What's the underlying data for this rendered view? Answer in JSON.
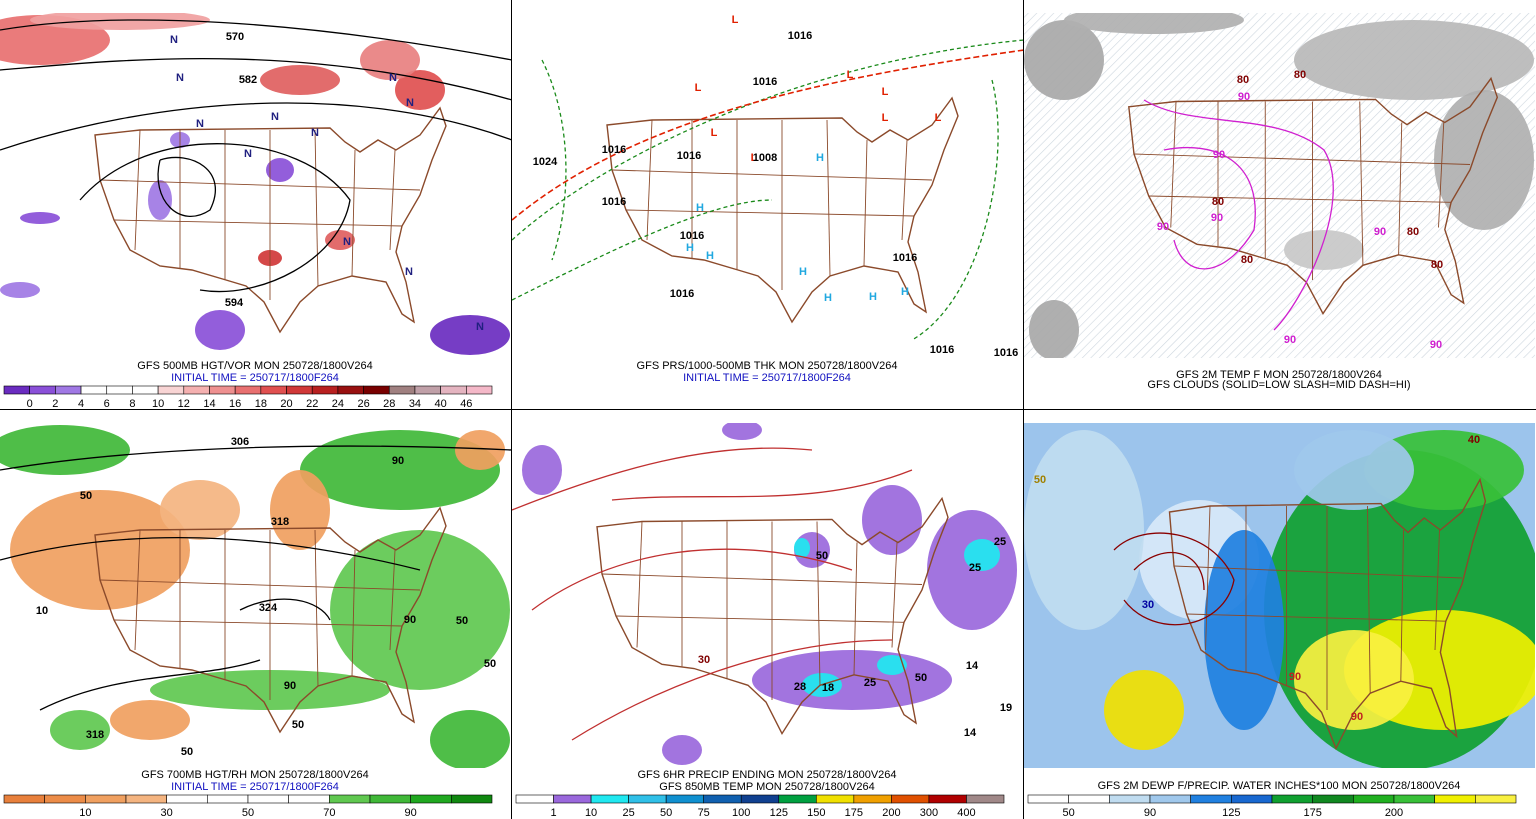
{
  "panels": [
    {
      "captions": [
        {
          "text": "GFS 500MB HGT/VOR MON 250728/1800V264",
          "color": "#000000"
        },
        {
          "text": "INITIAL TIME = 250717/1800F264",
          "color": "#1010c0"
        }
      ],
      "map_labels": [
        {
          "text": "570",
          "color": "#000000"
        },
        {
          "text": "582",
          "color": "#000000"
        },
        {
          "text": "594",
          "color": "#000000"
        },
        {
          "text": "N",
          "color": "#202080"
        },
        {
          "text": "N",
          "color": "#202080"
        },
        {
          "text": "N",
          "color": "#202080"
        },
        {
          "text": "N",
          "color": "#202080"
        },
        {
          "text": "N",
          "color": "#202080"
        },
        {
          "text": "N",
          "color": "#202080"
        },
        {
          "text": "N",
          "color": "#202080"
        },
        {
          "text": "N",
          "color": "#202080"
        },
        {
          "text": "N",
          "color": "#202080"
        },
        {
          "text": "N",
          "color": "#202080"
        },
        {
          "text": "N",
          "color": "#202080"
        }
      ],
      "colorbar": {
        "labels": [
          "0",
          "2",
          "4",
          "6",
          "8",
          "10",
          "12",
          "14",
          "16",
          "18",
          "20",
          "22",
          "24",
          "26",
          "28",
          "34",
          "40",
          "46"
        ],
        "colors": [
          "#6a2cc0",
          "#8a50d8",
          "#a078e4",
          "#ffffff",
          "#ffffff",
          "#ffffff",
          "#f8d4d4",
          "#f4b0b0",
          "#ee9090",
          "#e87070",
          "#e05050",
          "#d03838",
          "#b82020",
          "#981010",
          "#780000",
          "#a08080",
          "#c0a0a8",
          "#e4b4c0",
          "#f4b8c8"
        ]
      }
    },
    {
      "captions": [
        {
          "text": "GFS PRS/1000-500MB THK MON 250728/1800V264",
          "color": "#000000"
        },
        {
          "text": "INITIAL TIME = 250717/1800F264",
          "color": "#1010c0"
        }
      ],
      "map_labels": [
        {
          "text": "L",
          "color": "#e02000"
        },
        {
          "text": "L",
          "color": "#e02000"
        },
        {
          "text": "L",
          "color": "#e02000"
        },
        {
          "text": "L",
          "color": "#e02000"
        },
        {
          "text": "L",
          "color": "#e02000"
        },
        {
          "text": "L",
          "color": "#e02000"
        },
        {
          "text": "L",
          "color": "#e02000"
        },
        {
          "text": "L",
          "color": "#e02000"
        },
        {
          "text": "H",
          "color": "#20a8e0"
        },
        {
          "text": "H",
          "color": "#20a8e0"
        },
        {
          "text": "H",
          "color": "#20a8e0"
        },
        {
          "text": "H",
          "color": "#20a8e0"
        },
        {
          "text": "H",
          "color": "#20a8e0"
        },
        {
          "text": "H",
          "color": "#20a8e0"
        },
        {
          "text": "H",
          "color": "#20a8e0"
        },
        {
          "text": "H",
          "color": "#20a8e0"
        },
        {
          "text": "1016",
          "color": "#000000"
        },
        {
          "text": "1016",
          "color": "#000000"
        },
        {
          "text": "1024",
          "color": "#000000"
        },
        {
          "text": "1016",
          "color": "#000000"
        },
        {
          "text": "1016",
          "color": "#000000"
        },
        {
          "text": "1008",
          "color": "#000000"
        },
        {
          "text": "1016",
          "color": "#000000"
        },
        {
          "text": "1016",
          "color": "#000000"
        },
        {
          "text": "1016",
          "color": "#000000"
        },
        {
          "text": "1016",
          "color": "#000000"
        },
        {
          "text": "1016",
          "color": "#000000"
        },
        {
          "text": "1016",
          "color": "#000000"
        }
      ]
    },
    {
      "captions": [
        {
          "text": "GFS 2M TEMP F MON 250728/1800V264",
          "color": "#000000"
        },
        {
          "text": "GFS CLOUDS (SOLID=LOW SLASH=MID DASH=HI)",
          "color": "#000000"
        }
      ],
      "map_labels": [
        {
          "text": "80",
          "color": "#800000"
        },
        {
          "text": "90",
          "color": "#d020d0"
        },
        {
          "text": "80",
          "color": "#800000"
        },
        {
          "text": "90",
          "color": "#d020d0"
        },
        {
          "text": "80",
          "color": "#800000"
        },
        {
          "text": "90",
          "color": "#d020d0"
        },
        {
          "text": "90",
          "color": "#d020d0"
        },
        {
          "text": "80",
          "color": "#800000"
        },
        {
          "text": "90",
          "color": "#d020d0"
        },
        {
          "text": "80",
          "color": "#800000"
        },
        {
          "text": "80",
          "color": "#800000"
        },
        {
          "text": "90",
          "color": "#d020d0"
        },
        {
          "text": "90",
          "color": "#d020d0"
        }
      ]
    },
    {
      "captions": [
        {
          "text": "GFS 700MB HGT/RH MON 250728/1800V264",
          "color": "#000000"
        },
        {
          "text": "INITIAL TIME = 250717/1800F264",
          "color": "#1010c0"
        }
      ],
      "map_labels": [
        {
          "text": "306",
          "color": "#000000"
        },
        {
          "text": "50",
          "color": "#000000"
        },
        {
          "text": "90",
          "color": "#000000"
        },
        {
          "text": "318",
          "color": "#000000"
        },
        {
          "text": "324",
          "color": "#000000"
        },
        {
          "text": "318",
          "color": "#000000"
        },
        {
          "text": "10",
          "color": "#000000"
        },
        {
          "text": "50",
          "color": "#000000"
        },
        {
          "text": "50",
          "color": "#000000"
        },
        {
          "text": "90",
          "color": "#000000"
        },
        {
          "text": "90",
          "color": "#000000"
        },
        {
          "text": "50",
          "color": "#000000"
        },
        {
          "text": "50",
          "color": "#000000"
        }
      ],
      "colorbar": {
        "labels": [
          "10",
          "30",
          "50",
          "70",
          "90"
        ],
        "colors": [
          "#e8803c",
          "#ec8c48",
          "#f0a060",
          "#f4b480",
          "#ffffff",
          "#ffffff",
          "#ffffff",
          "#ffffff",
          "#60c850",
          "#40b838",
          "#20a820",
          "#108810"
        ]
      }
    },
    {
      "captions": [
        {
          "text": "GFS 6HR PRECIP ENDING MON 250728/1800V264",
          "color": "#000000"
        },
        {
          "text": "GFS 850MB TEMP MON 250728/1800V264",
          "color": "#000000"
        }
      ],
      "map_labels": [
        {
          "text": "25",
          "color": "#000000"
        },
        {
          "text": "25",
          "color": "#000000"
        },
        {
          "text": "30",
          "color": "#800000"
        },
        {
          "text": "28",
          "color": "#000000"
        },
        {
          "text": "18",
          "color": "#000000"
        },
        {
          "text": "25",
          "color": "#000000"
        },
        {
          "text": "50",
          "color": "#000000"
        },
        {
          "text": "14",
          "color": "#000000"
        },
        {
          "text": "14",
          "color": "#000000"
        },
        {
          "text": "19",
          "color": "#000000"
        },
        {
          "text": "50",
          "color": "#000000"
        }
      ],
      "colorbar": {
        "labels": [
          "1",
          "10",
          "25",
          "50",
          "75",
          "100",
          "125",
          "150",
          "175",
          "200",
          "300",
          "400"
        ],
        "colors": [
          "#ffffff",
          "#9a68dc",
          "#20e8f0",
          "#30c0e8",
          "#1090d0",
          "#1060b0",
          "#104090",
          "#00a040",
          "#f0e000",
          "#f0a000",
          "#e05000",
          "#b00000",
          "#a08888"
        ]
      }
    },
    {
      "captions": [
        {
          "text": "GFS 2M DEWP F/PRECIP. WATER INCHES*100 MON 250728/1800V264",
          "color": "#000000"
        }
      ],
      "map_labels": [
        {
          "text": "30",
          "color": "#0000a0"
        },
        {
          "text": "90",
          "color": "#c02020"
        },
        {
          "text": "40",
          "color": "#800000"
        },
        {
          "text": "90",
          "color": "#c02020"
        },
        {
          "text": "50",
          "color": "#a08000"
        }
      ],
      "colorbar": {
        "labels": [
          "50",
          "90",
          "125",
          "175",
          "200"
        ],
        "colors": [
          "#ffffff",
          "#ffffff",
          "#c0dcf0",
          "#a0c8ec",
          "#2080e0",
          "#1868d0",
          "#10a030",
          "#108820",
          "#20b020",
          "#38c038",
          "#f0f000",
          "#f8f040"
        ]
      }
    }
  ]
}
